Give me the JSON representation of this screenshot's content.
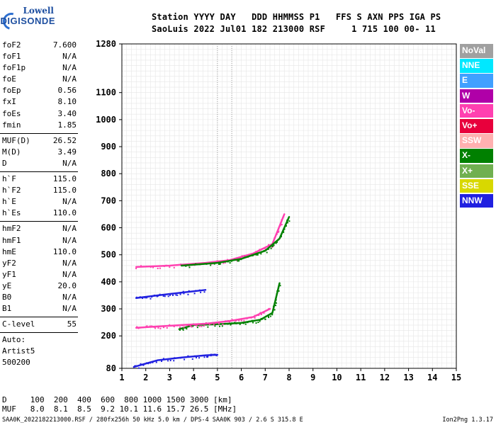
{
  "logo": {
    "company": "Lowell",
    "product": "DIGISONDE"
  },
  "header": {
    "line1": "Station YYYY DAY   DDD HHMMSS P1   FFS S AXN PPS IGA PS",
    "line2": "SaoLuis 2022 Jul01 182 213000 RSF     1 715 100 00- 11"
  },
  "params": {
    "group1": [
      {
        "name": "foF2",
        "value": "7.600"
      },
      {
        "name": "foF1",
        "value": "N/A"
      },
      {
        "name": "foF1p",
        "value": "N/A"
      },
      {
        "name": "foE",
        "value": "N/A"
      },
      {
        "name": "foEp",
        "value": "0.56"
      },
      {
        "name": "fxI",
        "value": "8.10"
      },
      {
        "name": "foEs",
        "value": "3.40"
      },
      {
        "name": "fmin",
        "value": "1.85"
      }
    ],
    "group2": [
      {
        "name": "MUF(D)",
        "value": "26.52"
      },
      {
        "name": "M(D)",
        "value": "3.49"
      },
      {
        "name": "D",
        "value": "N/A"
      }
    ],
    "group3": [
      {
        "name": "h`F",
        "value": "115.0"
      },
      {
        "name": "h`F2",
        "value": "115.0"
      },
      {
        "name": "h`E",
        "value": "N/A"
      },
      {
        "name": "h`Es",
        "value": "110.0"
      }
    ],
    "group4": [
      {
        "name": "hmF2",
        "value": "N/A"
      },
      {
        "name": "hmF1",
        "value": "N/A"
      },
      {
        "name": "hmE",
        "value": "110.0"
      },
      {
        "name": "yF2",
        "value": "N/A"
      },
      {
        "name": "yF1",
        "value": "N/A"
      },
      {
        "name": "yE",
        "value": "20.0"
      },
      {
        "name": "B0",
        "value": "N/A"
      },
      {
        "name": "B1",
        "value": "N/A"
      }
    ],
    "clevel": {
      "name": "C-level",
      "value": "55"
    },
    "auto": {
      "line1": "Auto:",
      "line2": "Artist5",
      "line3": "500200"
    }
  },
  "legend": [
    {
      "label": "NoVal",
      "color": "#a0a0a0"
    },
    {
      "label": "NNE",
      "color": "#00e8ff"
    },
    {
      "label": "E",
      "color": "#40a0ff"
    },
    {
      "label": "W",
      "color": "#b000a8"
    },
    {
      "label": "Vo-",
      "color": "#ff40b0"
    },
    {
      "label": "Vo+",
      "color": "#e8003c"
    },
    {
      "label": "SSW",
      "color": "#ffb0b0"
    },
    {
      "label": "X-",
      "color": "#008000"
    },
    {
      "label": "X+",
      "color": "#70b050"
    },
    {
      "label": "SSE",
      "color": "#d8d800"
    },
    {
      "label": "NNW",
      "color": "#2020e0"
    }
  ],
  "footer": {
    "distances": "D     100  200  400  600  800 1000 1500 3000 [km]",
    "mufs": "MUF   8.0  8.1  8.5  9.2 10.1 11.6 15.7 26.5 [MHz]",
    "caption": "SAA0K_2022182213000.RSF / 280fx256h 50 kHz 5.0 km / DPS-4 SAA0K 903 / 2.6 S 315.8 E",
    "version": "Ion2Png 1.3.17"
  },
  "chart_data": {
    "type": "scatter",
    "x_ticks": [
      "1",
      "2",
      "3",
      "4",
      "5",
      "6",
      "7",
      "8",
      "9",
      "10",
      "11",
      "12",
      "13",
      "14",
      "15"
    ],
    "y_ticks": [
      "80",
      "200",
      "300",
      "400",
      "500",
      "600",
      "700",
      "800",
      "900",
      "1000",
      "1100",
      "1280"
    ],
    "xlim": [
      1,
      15
    ],
    "ylim": [
      80,
      1280
    ],
    "grid": true,
    "legend_position": "right",
    "traces": [
      {
        "name": "X-",
        "x": [
          3.4,
          4.0,
          5.0,
          6.0,
          6.8,
          7.3,
          7.6
        ],
        "y": [
          225,
          240,
          243,
          248,
          260,
          285,
          395
        ]
      },
      {
        "name": "Vo-",
        "x": [
          1.6,
          2.5,
          3.5,
          4.5,
          5.5,
          6.5,
          7.2
        ],
        "y": [
          230,
          235,
          240,
          245,
          255,
          270,
          300
        ]
      },
      {
        "name": "Vo-",
        "x": [
          1.6,
          3.0,
          4.5,
          5.5,
          6.5,
          7.3,
          7.8
        ],
        "y": [
          455,
          460,
          470,
          480,
          505,
          540,
          650
        ]
      },
      {
        "name": "X-",
        "x": [
          3.5,
          5.0,
          6.0,
          7.0,
          7.6,
          8.0
        ],
        "y": [
          460,
          470,
          485,
          515,
          560,
          640
        ]
      },
      {
        "name": "NNW",
        "x": [
          1.5,
          2.5,
          3.5,
          4.5,
          5.0
        ],
        "y": [
          85,
          110,
          120,
          128,
          130
        ]
      },
      {
        "name": "NNW",
        "x": [
          1.6,
          2.5,
          3.5,
          4.5
        ],
        "y": [
          340,
          350,
          360,
          370
        ]
      }
    ]
  }
}
